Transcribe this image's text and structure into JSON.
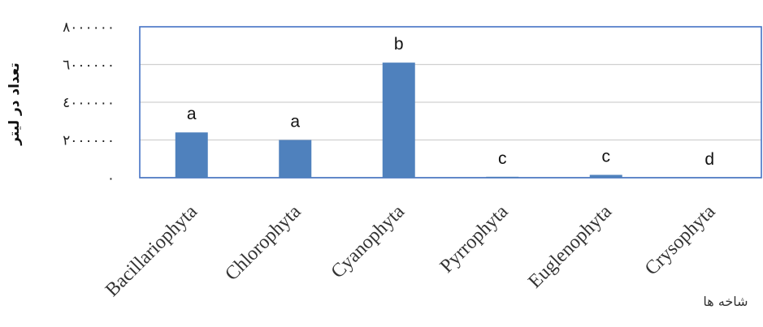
{
  "chart_data": {
    "type": "bar",
    "categories": [
      "Bacillariophyta",
      "Chlorophyta",
      "Cyanophyta",
      "Pyrrophyta",
      "Euglenophyta",
      "Crysophyta"
    ],
    "values": [
      2400000,
      2000000,
      6100000,
      50000,
      150000,
      0
    ],
    "letters": [
      "a",
      "a",
      "b",
      "c",
      "c",
      "d"
    ],
    "ylim": [
      0,
      8000000
    ],
    "yticks": [
      0,
      2000000,
      4000000,
      6000000,
      8000000
    ],
    "ytick_labels": [
      "٠",
      "٢٠٠٠٠٠٠",
      "٤٠٠٠٠٠٠",
      "٦٠٠٠٠٠٠",
      "٨٠٠٠٠٠٠"
    ],
    "ylabel": "تعداد در لیتر",
    "xlabel": "شاخه ها",
    "bar_color": "#4F81BD",
    "frame_color": "#4472C4",
    "grid": true
  }
}
